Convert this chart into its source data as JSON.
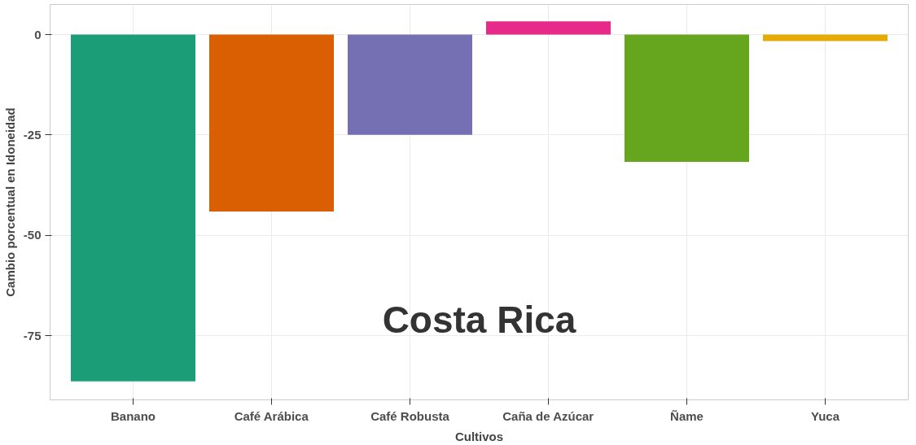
{
  "chart_data": {
    "type": "bar",
    "xlabel": "Cultivos",
    "ylabel": "Cambio porcentual en Idoneidad",
    "categories": [
      "Banano",
      "Café Arábica",
      "Café Robusta",
      "Caña de Azúcar",
      "Ñame",
      "Yuca"
    ],
    "values": [
      -86.4,
      -44.1,
      -25.0,
      3.3,
      -31.7,
      -1.6
    ],
    "colors": [
      "#1b9e77",
      "#d95f02",
      "#7570b3",
      "#e7298a",
      "#66a61e",
      "#e6ab02"
    ],
    "ylim": [
      -91,
      7.5
    ],
    "yticks": [
      0,
      -25,
      -50,
      -75
    ],
    "grid": true,
    "annotations": [
      "Costa Rica"
    ]
  }
}
